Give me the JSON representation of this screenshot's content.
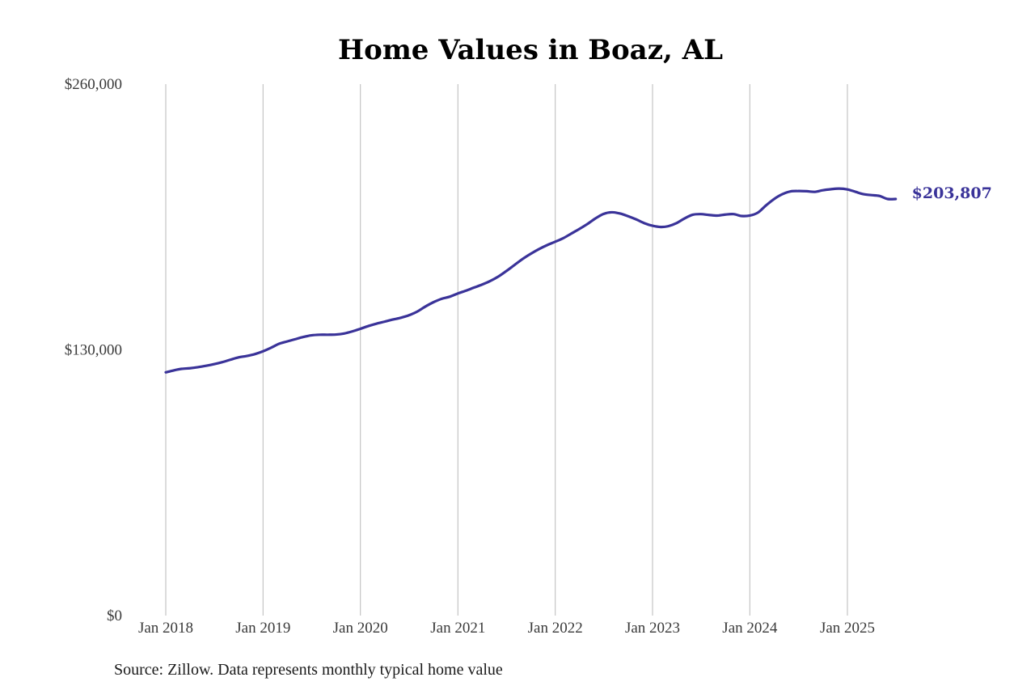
{
  "chart_data": {
    "type": "line",
    "title": "Home Values in Boaz, AL",
    "xlabel": "",
    "ylabel": "",
    "ylim": [
      0,
      260000
    ],
    "yticks": [
      {
        "value": 0,
        "label": "$0"
      },
      {
        "value": 130000,
        "label": "$130,000"
      },
      {
        "value": 260000,
        "label": "$260,000"
      }
    ],
    "xticks": [
      {
        "date": "2018-01",
        "label": "Jan 2018"
      },
      {
        "date": "2019-01",
        "label": "Jan 2019"
      },
      {
        "date": "2020-01",
        "label": "Jan 2020"
      },
      {
        "date": "2021-01",
        "label": "Jan 2021"
      },
      {
        "date": "2022-01",
        "label": "Jan 2022"
      },
      {
        "date": "2023-01",
        "label": "Jan 2023"
      },
      {
        "date": "2024-01",
        "label": "Jan 2024"
      },
      {
        "date": "2025-01",
        "label": "Jan 2025"
      }
    ],
    "grid": "vertical",
    "series_color": "#3a3399",
    "end_label": "$203,807",
    "series": [
      {
        "x": [
          "2018-01",
          "2018-02",
          "2018-03",
          "2018-04",
          "2018-05",
          "2018-06",
          "2018-07",
          "2018-08",
          "2018-09",
          "2018-10",
          "2018-11",
          "2018-12",
          "2019-01",
          "2019-02",
          "2019-03",
          "2019-04",
          "2019-05",
          "2019-06",
          "2019-07",
          "2019-08",
          "2019-09",
          "2019-10",
          "2019-11",
          "2019-12",
          "2020-01",
          "2020-02",
          "2020-03",
          "2020-04",
          "2020-05",
          "2020-06",
          "2020-07",
          "2020-08",
          "2020-09",
          "2020-10",
          "2020-11",
          "2020-12",
          "2021-01",
          "2021-02",
          "2021-03",
          "2021-04",
          "2021-05",
          "2021-06",
          "2021-07",
          "2021-08",
          "2021-09",
          "2021-10",
          "2021-11",
          "2021-12",
          "2022-01",
          "2022-02",
          "2022-03",
          "2022-04",
          "2022-05",
          "2022-06",
          "2022-07",
          "2022-08",
          "2022-09",
          "2022-10",
          "2022-11",
          "2022-12",
          "2023-01",
          "2023-02",
          "2023-03",
          "2023-04",
          "2023-05",
          "2023-06",
          "2023-07",
          "2023-08",
          "2023-09",
          "2023-10",
          "2023-11",
          "2023-12",
          "2024-01",
          "2024-02",
          "2024-03",
          "2024-04",
          "2024-05",
          "2024-06",
          "2024-07",
          "2024-08",
          "2024-09",
          "2024-10",
          "2024-11",
          "2024-12",
          "2025-01",
          "2025-02",
          "2025-03",
          "2025-04",
          "2025-05",
          "2025-06",
          "2025-07"
        ],
        "values": [
          119000,
          120000,
          120700,
          121000,
          121500,
          122200,
          123000,
          124000,
          125200,
          126300,
          127000,
          127900,
          129300,
          131100,
          132900,
          134100,
          135200,
          136300,
          137100,
          137400,
          137400,
          137500,
          138000,
          139000,
          140300,
          141700,
          142800,
          143800,
          144800,
          145700,
          146900,
          148700,
          151200,
          153300,
          155000,
          156000,
          157600,
          159000,
          160400,
          161900,
          163600,
          165800,
          168500,
          171500,
          174500,
          177000,
          179300,
          181200,
          182900,
          184700,
          186800,
          189100,
          191500,
          194300,
          196500,
          197300,
          196700,
          195400,
          193800,
          192000,
          190700,
          190100,
          190500,
          192000,
          194300,
          196100,
          196400,
          196000,
          195700,
          196200,
          196400,
          195500,
          195700,
          197200,
          200600,
          203800,
          206100,
          207500,
          207700,
          207600,
          207300,
          208100,
          208600,
          208900,
          208500,
          207300,
          206200,
          205700,
          205300,
          203807,
          203807
        ]
      }
    ]
  },
  "footer": {
    "source": "Source: Zillow. Data represents monthly typical home value"
  }
}
